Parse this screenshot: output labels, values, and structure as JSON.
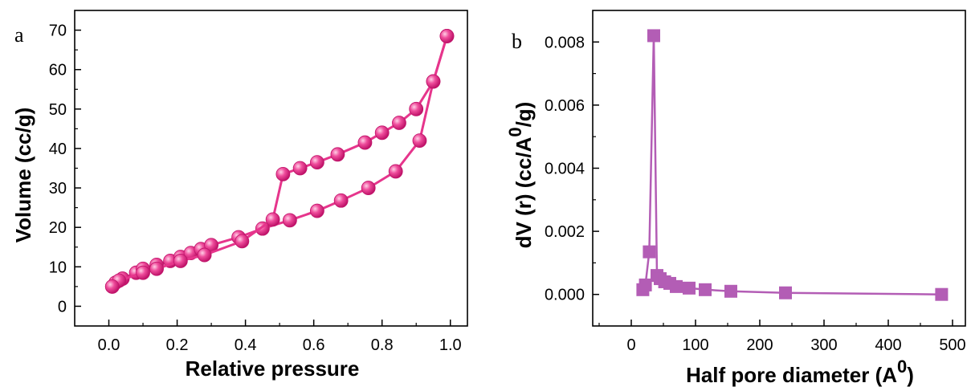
{
  "figure": {
    "panels": [
      "a",
      "b"
    ]
  },
  "chart_data": [
    {
      "type": "line",
      "panel_label": "a",
      "xlabel": "Relative pressure",
      "ylabel": "Volume (cc/g)",
      "xlim": [
        -0.1,
        1.05
      ],
      "ylim": [
        -5,
        75
      ],
      "xticks": [
        "0.0",
        "0.2",
        "0.4",
        "0.6",
        "0.8",
        "1.0"
      ],
      "yticks": [
        "0",
        "10",
        "20",
        "30",
        "40",
        "50",
        "60",
        "70"
      ],
      "grid": false,
      "color": "#e6358c",
      "series": [
        {
          "x": [
            0.01,
            0.02,
            0.04,
            0.08,
            0.1,
            0.14,
            0.18,
            0.21,
            0.24,
            0.27,
            0.3,
            0.38,
            0.45,
            0.53,
            0.61,
            0.68,
            0.76,
            0.84,
            0.91,
            0.95,
            0.99
          ],
          "y": [
            5,
            6,
            7,
            8.5,
            9.5,
            10.5,
            11.5,
            12.5,
            13.5,
            14.5,
            15.5,
            17.5,
            19.7,
            21.8,
            24.2,
            26.8,
            30,
            34.2,
            42,
            57,
            68.5
          ]
        },
        {
          "x": [
            0.99,
            0.95,
            0.9,
            0.85,
            0.8,
            0.75,
            0.67,
            0.61,
            0.56,
            0.51,
            0.48,
            0.39,
            0.28,
            0.21,
            0.14,
            0.1,
            0.03,
            0.01
          ],
          "y": [
            68.5,
            57,
            50,
            46.5,
            44,
            41.5,
            38.5,
            36.5,
            35,
            33.5,
            22,
            16.5,
            13,
            11.5,
            9.5,
            8.5,
            6.5,
            5
          ]
        }
      ]
    },
    {
      "type": "line",
      "panel_label": "b",
      "xlabel": "Half pore diameter (A",
      "xlabel_sup": "0",
      "xlabel_end": ")",
      "ylabel": "dV (r) (cc/A",
      "ylabel_sup": "0",
      "ylabel_end": "/g)",
      "xlim": [
        -60,
        520
      ],
      "ylim": [
        -0.001,
        0.009
      ],
      "xticks": [
        "0",
        "100",
        "200",
        "300",
        "400",
        "500"
      ],
      "yticks": [
        "0.000",
        "0.002",
        "0.004",
        "0.006",
        "0.008"
      ],
      "grid": false,
      "color": "#b35db5",
      "series": [
        {
          "x": [
            18,
            22,
            28,
            35,
            40,
            45,
            52,
            60,
            70,
            90,
            115,
            155,
            240,
            483
          ],
          "y": [
            0.00015,
            0.0003,
            0.00135,
            0.0082,
            0.0006,
            0.0005,
            0.0004,
            0.00035,
            0.00025,
            0.0002,
            0.00015,
            0.0001,
            5e-05,
            0.0
          ]
        }
      ]
    }
  ]
}
